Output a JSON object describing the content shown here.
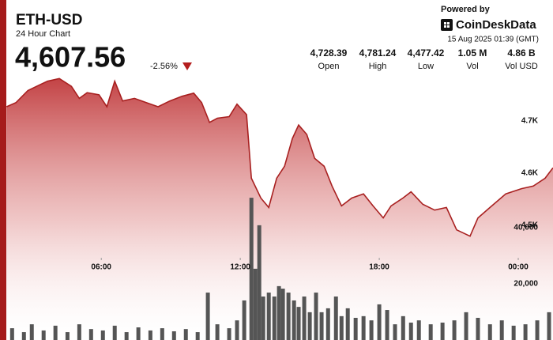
{
  "chart_data": {
    "type": "area",
    "title": "ETH-USD",
    "subtitle": "24 Hour Chart",
    "price": "4,607.56",
    "change": "-2.56%",
    "powered_by": "Powered by",
    "brand": "CoinDeskData",
    "timestamp": "15 Aug 2025 01:39 (GMT)",
    "stats": [
      {
        "value": "4,728.39",
        "label": "Open"
      },
      {
        "value": "4,781.24",
        "label": "High"
      },
      {
        "value": "4,477.42",
        "label": "Low"
      },
      {
        "value": "1.05 M",
        "label": "Vol"
      },
      {
        "value": "4.86 B",
        "label": "Vol USD"
      }
    ],
    "xlim": [
      1.9,
      25.5
    ],
    "xticks": [
      {
        "value": 6,
        "label": "06:00"
      },
      {
        "value": 12,
        "label": "12:00"
      },
      {
        "value": 18,
        "label": "18:00"
      },
      {
        "value": 24,
        "label": "00:00"
      }
    ],
    "ylim": [
      4280,
      4780
    ],
    "yticks": [
      {
        "value": 4500,
        "label": "4.5K"
      },
      {
        "value": 4600,
        "label": "4.6K"
      },
      {
        "value": 4700,
        "label": "4.7K"
      }
    ],
    "y2lim": [
      0,
      93000
    ],
    "y2ticks": [
      {
        "value": 20000,
        "label": "20,000"
      },
      {
        "value": 40000,
        "label": "40,000"
      }
    ],
    "grid": false,
    "series": [
      {
        "name": "Price",
        "type": "area",
        "color": "#a82020",
        "x": [
          1.91,
          2.32,
          2.83,
          3.34,
          3.68,
          4.19,
          4.71,
          5.05,
          5.39,
          5.9,
          6.24,
          6.58,
          6.92,
          7.43,
          7.94,
          8.45,
          8.96,
          9.48,
          9.99,
          10.33,
          10.67,
          11.01,
          11.52,
          11.86,
          12.27,
          12.48,
          12.89,
          13.23,
          13.57,
          13.91,
          14.25,
          14.52,
          14.87,
          15.21,
          15.62,
          15.96,
          16.37,
          16.81,
          17.32,
          17.73,
          18.17,
          18.51,
          19.02,
          19.37,
          19.88,
          20.39,
          20.9,
          21.34,
          21.92,
          22.26,
          22.78,
          23.46,
          24.14,
          24.65,
          25.16,
          25.5
        ],
        "values": [
          4727,
          4735,
          4758,
          4769,
          4776,
          4781,
          4766,
          4743,
          4754,
          4750,
          4727,
          4776,
          4738,
          4743,
          4735,
          4727,
          4738,
          4747,
          4753,
          4735,
          4697,
          4705,
          4708,
          4732,
          4712,
          4590,
          4552,
          4534,
          4590,
          4613,
          4666,
          4692,
          4674,
          4628,
          4613,
          4575,
          4537,
          4552,
          4560,
          4537,
          4514,
          4537,
          4552,
          4564,
          4540,
          4529,
          4534,
          4491,
          4479,
          4514,
          4534,
          4560,
          4570,
          4575,
          4590,
          4610
        ]
      },
      {
        "name": "Volume",
        "type": "bar",
        "axis": "y2",
        "color": "#555555",
        "x": [
          2.15,
          2.66,
          3.0,
          3.51,
          4.02,
          4.54,
          5.05,
          5.56,
          6.07,
          6.58,
          7.09,
          7.6,
          8.12,
          8.63,
          9.14,
          9.65,
          10.16,
          10.6,
          11.01,
          11.52,
          11.86,
          12.17,
          12.48,
          12.65,
          12.82,
          12.99,
          13.23,
          13.47,
          13.67,
          13.84,
          14.08,
          14.32,
          14.52,
          14.76,
          15.0,
          15.27,
          15.51,
          15.79,
          16.13,
          16.37,
          16.64,
          16.98,
          17.32,
          17.66,
          18.0,
          18.34,
          18.68,
          19.03,
          19.37,
          19.71,
          20.22,
          20.73,
          21.24,
          21.75,
          22.26,
          22.78,
          23.29,
          23.8,
          24.31,
          24.82,
          25.33
        ],
        "values": [
          4200,
          2800,
          5600,
          3400,
          5100,
          2800,
          5600,
          3900,
          3400,
          5100,
          2800,
          4500,
          3400,
          4200,
          3100,
          3900,
          2800,
          16900,
          5600,
          4200,
          7000,
          14100,
          50700,
          25400,
          40900,
          15500,
          16900,
          15500,
          19200,
          18300,
          16900,
          14100,
          11800,
          15500,
          9900,
          16900,
          9900,
          11300,
          15500,
          8500,
          11300,
          7900,
          8500,
          7000,
          12700,
          10700,
          5600,
          8500,
          6200,
          7000,
          5600,
          6200,
          7000,
          9900,
          7900,
          5600,
          7000,
          5100,
          5600,
          7000,
          9900
        ]
      }
    ]
  }
}
